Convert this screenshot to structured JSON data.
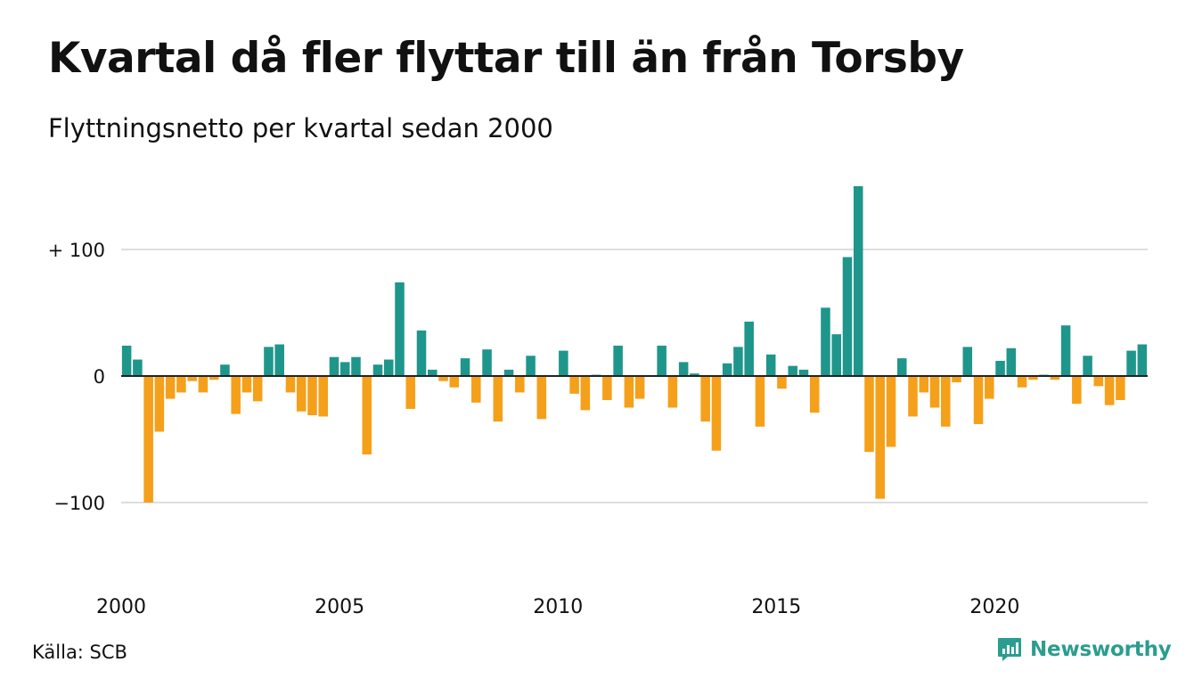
{
  "title": "Kvartal då fler flyttar till än från Torsby",
  "subtitle": "Flyttningsnetto per kvartal sedan 2000",
  "source": "Källa: SCB",
  "brand": {
    "name": "Newsworthy",
    "icon": "newsworthy-logo-icon"
  },
  "colors": {
    "positive": "#1f968b",
    "negative": "#f5a01a",
    "grid": "#dddddd",
    "text": "#111111",
    "brand": "#2a9d8f"
  },
  "chart_data": {
    "type": "bar",
    "title": "Kvartal då fler flyttar till än från Torsby",
    "subtitle": "Flyttningsnetto per kvartal sedan 2000",
    "start_year": 2000,
    "start_quarter": 1,
    "ylim": [
      -100,
      150
    ],
    "y_ticks": [
      {
        "value": 100,
        "label": "+ 100"
      },
      {
        "value": 0,
        "label": "0"
      },
      {
        "value": -100,
        "label": "−100"
      }
    ],
    "x_ticks": [
      "2000",
      "2005",
      "2010",
      "2015",
      "2020"
    ],
    "grid": true,
    "values": [
      24,
      13,
      -100,
      -44,
      -18,
      -13,
      -4,
      -13,
      -3,
      9,
      -30,
      -13,
      -20,
      23,
      25,
      -13,
      -28,
      -31,
      -32,
      15,
      11,
      15,
      -62,
      9,
      13,
      74,
      -26,
      36,
      5,
      -4,
      -9,
      14,
      -21,
      21,
      -36,
      5,
      -13,
      16,
      -34,
      0,
      20,
      -14,
      -27,
      1,
      -19,
      24,
      -25,
      -18,
      0,
      24,
      -25,
      11,
      2,
      -36,
      -59,
      10,
      23,
      43,
      -40,
      17,
      -10,
      8,
      5,
      -29,
      54,
      33,
      94,
      150,
      -60,
      -97,
      -56,
      14,
      -32,
      -13,
      -25,
      -40,
      -5,
      23,
      -38,
      -18,
      12,
      22,
      -9,
      -3,
      1,
      -3,
      40,
      -22,
      16,
      -8,
      -23,
      -19,
      20,
      25
    ]
  }
}
